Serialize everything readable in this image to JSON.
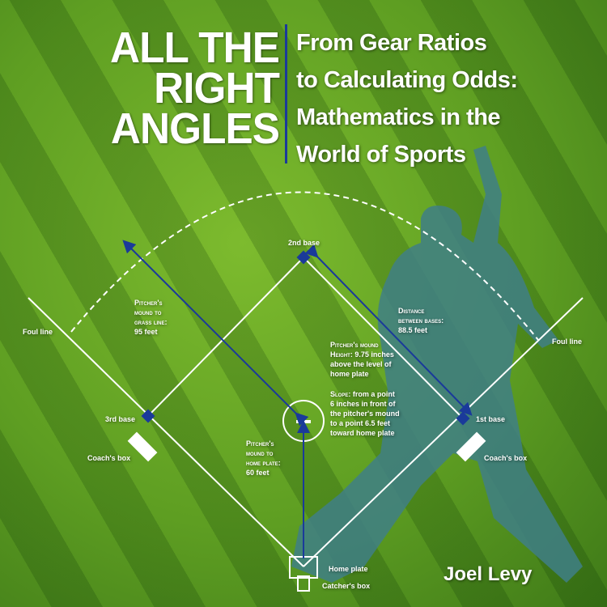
{
  "title": {
    "lines": [
      "ALL THE",
      "RIGHT",
      "ANGLES"
    ]
  },
  "subtitle": {
    "lines": [
      "From Gear Ratios",
      "to Calculating Odds:",
      "Mathematics in the",
      "World of Sports"
    ]
  },
  "author": "Joel Levy",
  "diagram": {
    "second_base": "2nd base",
    "first_base": "1st base",
    "third_base": "3rd base",
    "home_plate": "Home plate",
    "catchers_box": "Catcher's box",
    "coachs_box_left": "Coach's box",
    "coachs_box_right": "Coach's box",
    "foul_line_left": "Foul line",
    "foul_line_right": "Foul line",
    "grass_line": {
      "l1": "Pitcher's",
      "l2": "mound to",
      "l3": "grass line:",
      "l4": "95 feet"
    },
    "bases_distance": {
      "l1": "Distance",
      "l2": "between bases:",
      "l3": "88.5 feet"
    },
    "mound_height": {
      "l1": "Pitcher's mound",
      "l2a": "Height:",
      "l2b": " 9.75 inches",
      "l3": "above the level of",
      "l4": "home plate"
    },
    "slope": {
      "l1a": "Slope:",
      "l1b": " from a point",
      "l2": "6 inches in front of",
      "l3": "the pitcher's mound",
      "l4": "to a point 6.5 feet",
      "l5": "toward home plate"
    },
    "home_distance": {
      "l1": "Pitcher's",
      "l2": "mound to",
      "l3": "home plate:",
      "l4": "60 feet"
    }
  },
  "colors": {
    "grass": "#6aab26",
    "arrow": "#1a3a9a",
    "silhouette": "#3f7f86"
  }
}
